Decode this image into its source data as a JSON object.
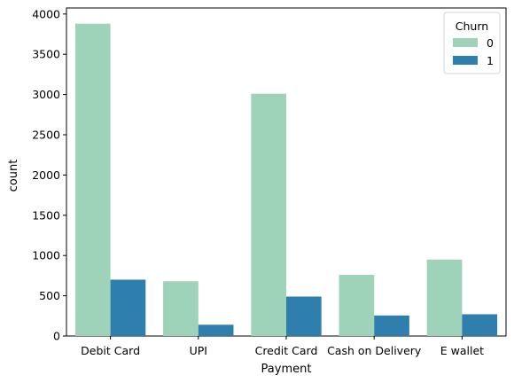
{
  "chart_data": {
    "type": "bar",
    "xlabel": "Payment",
    "ylabel": "count",
    "categories": [
      "Debit Card",
      "UPI",
      "Credit Card",
      "Cash on Delivery",
      "E wallet"
    ],
    "series": [
      {
        "name": "0",
        "values": [
          3880,
          680,
          3010,
          760,
          950
        ],
        "color": "#9fd3b9"
      },
      {
        "name": "1",
        "values": [
          700,
          140,
          490,
          255,
          270
        ],
        "color": "#2e7eae"
      }
    ],
    "yticks": [
      0,
      500,
      1000,
      1500,
      2000,
      2500,
      3000,
      3500,
      4000
    ],
    "ylim": [
      0,
      4075
    ],
    "legend": {
      "title": "Churn",
      "placement": "top-right"
    },
    "grid": false
  }
}
